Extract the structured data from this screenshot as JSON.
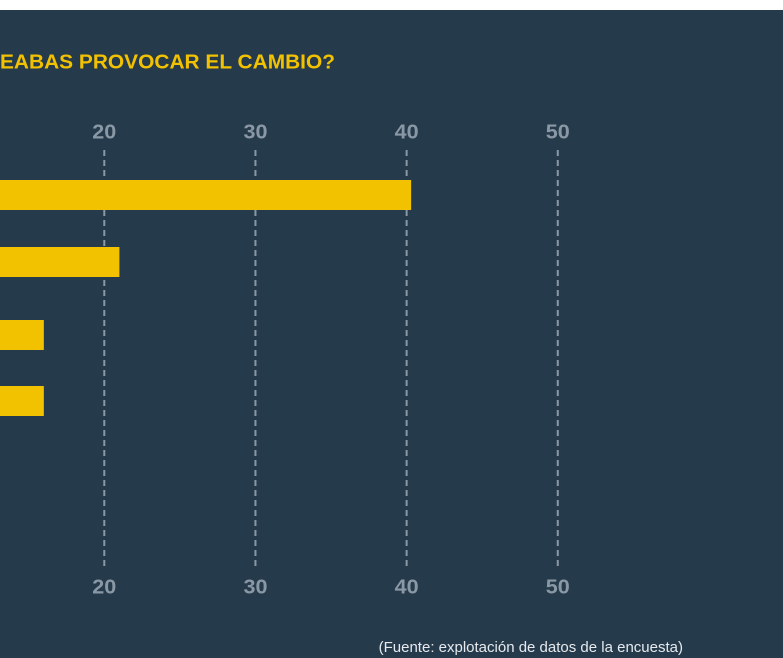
{
  "chart_data": {
    "type": "barh",
    "title": "EABAS PROVOCAR EL CAMBIO?",
    "source": "(Fuente: explotación de datos de la encuesta)",
    "categories": [
      null,
      null,
      null,
      null
    ],
    "values": [
      40.3,
      21,
      16,
      16
    ],
    "color": "#f2c200",
    "xlim": [
      13.1,
      64.9
    ],
    "xticks": [
      20,
      30,
      40,
      50
    ],
    "grid": true
  }
}
